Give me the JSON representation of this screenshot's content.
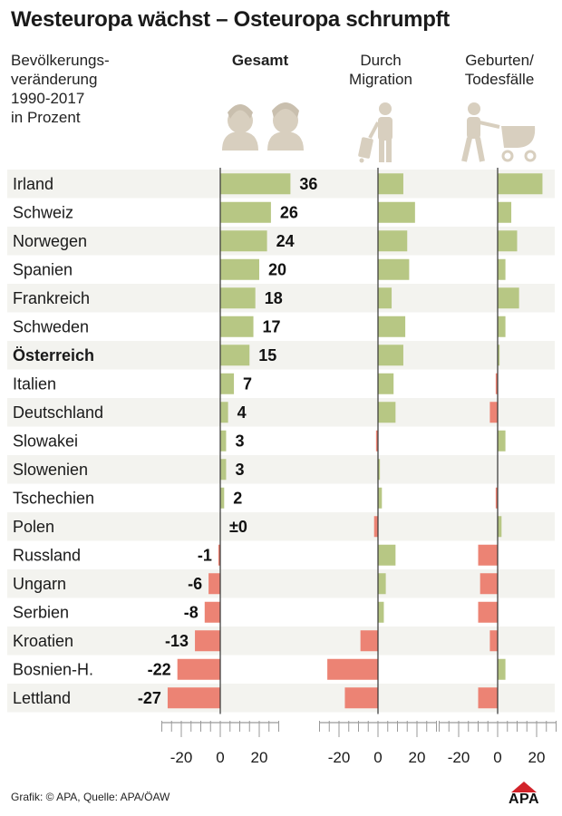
{
  "title": "Westeuropa wächst – Osteuropa schrumpft",
  "subtitle": "Bevölkerungs-\nveränderung\n1990-2017\nin Prozent",
  "columns": {
    "gesamt": "Gesamt",
    "migration": "Durch\nMigration",
    "geburten": "Geburten/\nTodesfälle"
  },
  "source": "Grafik: © APA, Quelle: APA/ÖAW",
  "logo": "APA",
  "colors": {
    "positive": "#b7c784",
    "negative": "#ec8374",
    "row_stripe": "#f3f3ef",
    "icon": "#d8cfbf",
    "logo_red": "#d2232a"
  },
  "icons": [
    "two-people-icon",
    "migrant-with-suitcase-icon",
    "parent-with-stroller-icon"
  ],
  "chart_data": {
    "type": "bar",
    "title": "Westeuropa wächst – Osteuropa schrumpft",
    "orientation": "horizontal",
    "xlim": [
      -30,
      30
    ],
    "xticks": [
      -20,
      0,
      20
    ],
    "xtick_labels": [
      "-20",
      "0",
      "20"
    ],
    "categories": [
      "Irland",
      "Schweiz",
      "Norwegen",
      "Spanien",
      "Frankreich",
      "Schweden",
      "Österreich",
      "Italien",
      "Deutschland",
      "Slowakei",
      "Slowenien",
      "Tschechien",
      "Polen",
      "Russland",
      "Ungarn",
      "Serbien",
      "Kroatien",
      "Bosnien-H.",
      "Lettland"
    ],
    "highlight": "Österreich",
    "series": [
      {
        "name": "Gesamt",
        "values": [
          36,
          26,
          24,
          20,
          18,
          17,
          15,
          7,
          4,
          3,
          3,
          2,
          0,
          -1,
          -6,
          -8,
          -13,
          -22,
          -27
        ],
        "labels": [
          "36",
          "26",
          "24",
          "20",
          "18",
          "17",
          "15",
          "7",
          "4",
          "3",
          "3",
          "2",
          "±0",
          "-1",
          "-6",
          "-8",
          "-13",
          "-22",
          "-27"
        ]
      },
      {
        "name": "Durch Migration",
        "values": [
          13,
          19,
          15,
          16,
          7,
          14,
          13,
          8,
          9,
          -1,
          1,
          2,
          -2,
          9,
          4,
          3,
          -9,
          -26,
          -17
        ]
      },
      {
        "name": "Geburten/Todesfälle",
        "values": [
          23,
          7,
          10,
          4,
          11,
          4,
          1,
          -1,
          -4,
          4,
          0,
          -1,
          2,
          -10,
          -9,
          -10,
          -4,
          4,
          -10
        ]
      }
    ],
    "grid": false,
    "legend": "none"
  }
}
